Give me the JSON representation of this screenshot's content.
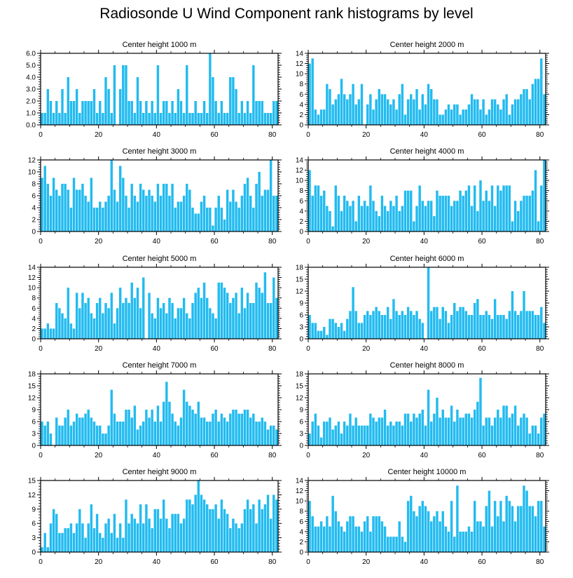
{
  "title": "Radiosonde U Wind Component rank histograms by level",
  "bar_color": "#22bbf0",
  "chart_data": [
    {
      "type": "bar",
      "title": "Center height 1000 m",
      "xlabel": "",
      "ylabel": "",
      "xlim": [
        0,
        82
      ],
      "ylim": [
        0,
        6
      ],
      "yticks": [
        0,
        1,
        2,
        3,
        4,
        5,
        6
      ],
      "ytick_labels": [
        "0.0",
        "1.0",
        "2.0",
        "3.0",
        "4.0",
        "5.0",
        "6.0"
      ],
      "xticks": [
        0,
        20,
        40,
        60,
        80
      ],
      "values": [
        1,
        1,
        3,
        2,
        1,
        2,
        1,
        3,
        1,
        4,
        2,
        2,
        3,
        1,
        2,
        2,
        2,
        2,
        3,
        1,
        2,
        1,
        4,
        3,
        1,
        5,
        0,
        3,
        5,
        5,
        2,
        2,
        1,
        4,
        2,
        1,
        2,
        1,
        2,
        1,
        5,
        1,
        2,
        2,
        1,
        2,
        1,
        3,
        2,
        1,
        5,
        1,
        1,
        2,
        1,
        1,
        2,
        1,
        6,
        4,
        2,
        1,
        2,
        1,
        1,
        4,
        4,
        3,
        1,
        2,
        1,
        2,
        1,
        5,
        2,
        2,
        2,
        1,
        1,
        1,
        2,
        2
      ]
    },
    {
      "type": "bar",
      "title": "Center height 2000 m",
      "xlabel": "",
      "ylabel": "",
      "xlim": [
        0,
        82
      ],
      "ylim": [
        0,
        14
      ],
      "yticks": [
        0,
        2,
        4,
        6,
        8,
        10,
        12,
        14
      ],
      "ytick_labels": [
        "0",
        "2",
        "4",
        "6",
        "8",
        "10",
        "12",
        "14"
      ],
      "xticks": [
        0,
        20,
        40,
        60,
        80
      ],
      "values": [
        12,
        13,
        3,
        2,
        3,
        3,
        8,
        7,
        4,
        5,
        6,
        9,
        6,
        5,
        6,
        8,
        4,
        5,
        8,
        0,
        4,
        6,
        3,
        5,
        7,
        6,
        6,
        5,
        4,
        5,
        3,
        6,
        8,
        2,
        5,
        6,
        5,
        7,
        3,
        6,
        4,
        8,
        7,
        5,
        5,
        2,
        2,
        3,
        4,
        3,
        4,
        4,
        2,
        3,
        3,
        4,
        6,
        5,
        5,
        3,
        5,
        2,
        3,
        5,
        5,
        4,
        3,
        5,
        6,
        2,
        4,
        5,
        5,
        6,
        7,
        7,
        5,
        8,
        9,
        9,
        13,
        6
      ]
    },
    {
      "type": "bar",
      "title": "Center height 3000 m",
      "xlabel": "",
      "ylabel": "",
      "xlim": [
        0,
        82
      ],
      "ylim": [
        0,
        12
      ],
      "yticks": [
        0,
        2,
        4,
        6,
        8,
        10,
        12
      ],
      "ytick_labels": [
        "0",
        "2",
        "4",
        "6",
        "8",
        "10",
        "12"
      ],
      "xticks": [
        0,
        20,
        40,
        60,
        80
      ],
      "values": [
        9,
        11,
        8,
        6,
        9,
        7,
        6,
        8,
        8,
        7,
        4,
        9,
        7,
        7,
        8,
        6,
        5,
        9,
        4,
        4,
        5,
        4,
        5,
        6,
        12,
        7,
        5,
        11,
        9,
        6,
        4,
        8,
        6,
        5,
        8,
        7,
        6,
        7,
        6,
        5,
        8,
        6,
        8,
        8,
        6,
        8,
        4,
        5,
        5,
        6,
        8,
        7,
        4,
        3,
        3,
        5,
        6,
        4,
        4,
        1,
        4,
        6,
        4,
        2,
        7,
        5,
        7,
        5,
        4,
        6,
        8,
        9,
        6,
        4,
        8,
        10,
        6,
        7,
        7,
        12,
        6,
        6
      ]
    },
    {
      "type": "bar",
      "title": "Center height 4000 m",
      "xlabel": "",
      "ylabel": "",
      "xlim": [
        0,
        82
      ],
      "ylim": [
        0,
        14
      ],
      "yticks": [
        0,
        2,
        4,
        6,
        8,
        10,
        12,
        14
      ],
      "ytick_labels": [
        "0",
        "2",
        "4",
        "6",
        "8",
        "10",
        "12",
        "14"
      ],
      "xticks": [
        0,
        20,
        40,
        60,
        80
      ],
      "values": [
        12,
        7,
        9,
        9,
        7,
        8,
        5,
        4,
        1,
        9,
        7,
        4,
        7,
        6,
        5,
        6,
        2,
        7,
        5,
        6,
        5,
        9,
        6,
        4,
        3,
        7,
        5,
        4,
        6,
        5,
        7,
        4,
        5,
        8,
        8,
        8,
        2,
        5,
        9,
        6,
        5,
        6,
        6,
        3,
        8,
        7,
        7,
        7,
        7,
        5,
        6,
        6,
        8,
        7,
        8,
        9,
        5,
        9,
        4,
        10,
        6,
        8,
        6,
        9,
        5,
        9,
        8,
        9,
        9,
        9,
        2,
        6,
        4,
        6,
        7,
        7,
        7,
        8,
        12,
        2,
        9,
        14
      ]
    },
    {
      "type": "bar",
      "title": "Center height 5000 m",
      "xlabel": "",
      "ylabel": "",
      "xlim": [
        0,
        82
      ],
      "ylim": [
        0,
        14
      ],
      "yticks": [
        0,
        2,
        4,
        6,
        8,
        10,
        12,
        14
      ],
      "ytick_labels": [
        "0",
        "2",
        "4",
        "6",
        "8",
        "10",
        "12",
        "14"
      ],
      "xticks": [
        0,
        20,
        40,
        60,
        80
      ],
      "values": [
        2,
        2,
        3,
        2,
        2,
        7,
        6,
        5,
        4,
        10,
        3,
        2,
        9,
        6,
        9,
        7,
        8,
        5,
        4,
        7,
        8,
        5,
        7,
        6,
        9,
        3,
        6,
        10,
        7,
        8,
        7,
        11,
        8,
        10,
        6,
        12,
        0,
        9,
        5,
        4,
        8,
        6,
        7,
        5,
        8,
        7,
        4,
        6,
        6,
        8,
        5,
        4,
        7,
        9,
        10,
        8,
        11,
        8,
        6,
        5,
        4,
        11,
        11,
        10,
        9,
        7,
        8,
        9,
        5,
        10,
        6,
        9,
        7,
        7,
        11,
        10,
        9,
        13,
        7,
        7,
        12,
        8
      ]
    },
    {
      "type": "bar",
      "title": "Center height 6000 m",
      "xlabel": "",
      "ylabel": "",
      "xlim": [
        0,
        82
      ],
      "ylim": [
        0,
        18
      ],
      "yticks": [
        0,
        3,
        6,
        9,
        12,
        15,
        18
      ],
      "ytick_labels": [
        "0",
        "3",
        "6",
        "9",
        "12",
        "15",
        "18"
      ],
      "xticks": [
        0,
        20,
        40,
        60,
        80
      ],
      "values": [
        6,
        4,
        4,
        2,
        2,
        3,
        1,
        5,
        5,
        4,
        3,
        4,
        2,
        5,
        7,
        13,
        7,
        4,
        4,
        6,
        7,
        6,
        7,
        8,
        7,
        6,
        6,
        8,
        5,
        10,
        7,
        6,
        7,
        6,
        8,
        7,
        6,
        7,
        5,
        4,
        0,
        18,
        7,
        8,
        8,
        5,
        8,
        7,
        4,
        6,
        9,
        7,
        8,
        8,
        7,
        6,
        6,
        9,
        10,
        6,
        6,
        7,
        6,
        5,
        10,
        6,
        6,
        6,
        5,
        7,
        12,
        7,
        6,
        7,
        12,
        7,
        7,
        7,
        6,
        6,
        8,
        4
      ]
    },
    {
      "type": "bar",
      "title": "Center height 7000 m",
      "xlabel": "",
      "ylabel": "",
      "xlim": [
        0,
        82
      ],
      "ylim": [
        0,
        18
      ],
      "yticks": [
        0,
        3,
        6,
        9,
        12,
        15,
        18
      ],
      "ytick_labels": [
        "0",
        "3",
        "6",
        "9",
        "12",
        "15",
        "18"
      ],
      "xticks": [
        0,
        20,
        40,
        60,
        80
      ],
      "values": [
        6,
        5,
        6,
        3,
        0,
        7,
        5,
        5,
        7,
        9,
        5,
        6,
        8,
        7,
        7,
        8,
        9,
        7,
        6,
        5,
        5,
        3,
        3,
        5,
        14,
        8,
        6,
        6,
        6,
        9,
        9,
        7,
        10,
        4,
        5,
        6,
        9,
        7,
        9,
        6,
        10,
        6,
        11,
        16,
        11,
        8,
        6,
        5,
        7,
        14,
        11,
        10,
        9,
        8,
        11,
        7,
        7,
        6,
        6,
        8,
        9,
        6,
        8,
        7,
        6,
        8,
        9,
        9,
        8,
        8,
        9,
        9,
        7,
        8,
        6,
        6,
        7,
        6,
        4,
        5,
        5,
        4
      ]
    },
    {
      "type": "bar",
      "title": "Center height 8000 m",
      "xlabel": "",
      "ylabel": "",
      "xlim": [
        0,
        82
      ],
      "ylim": [
        0,
        18
      ],
      "yticks": [
        0,
        3,
        6,
        9,
        12,
        15,
        18
      ],
      "ytick_labels": [
        "0",
        "3",
        "6",
        "9",
        "12",
        "15",
        "18"
      ],
      "xticks": [
        0,
        20,
        40,
        60,
        80
      ],
      "values": [
        3,
        6,
        8,
        5,
        2,
        6,
        6,
        7,
        4,
        5,
        6,
        3,
        6,
        5,
        8,
        5,
        7,
        5,
        5,
        5,
        5,
        8,
        7,
        6,
        7,
        7,
        9,
        5,
        6,
        5,
        6,
        6,
        5,
        8,
        8,
        6,
        8,
        7,
        8,
        9,
        5,
        14,
        6,
        8,
        12,
        7,
        9,
        7,
        7,
        10,
        6,
        9,
        7,
        7,
        8,
        8,
        7,
        9,
        11,
        17,
        5,
        7,
        7,
        5,
        7,
        9,
        7,
        10,
        10,
        7,
        8,
        10,
        5,
        7,
        8,
        7,
        3,
        5,
        5,
        3,
        7,
        8
      ]
    },
    {
      "type": "bar",
      "title": "Center height 9000 m",
      "xlabel": "",
      "ylabel": "",
      "xlim": [
        0,
        82
      ],
      "ylim": [
        0,
        15
      ],
      "yticks": [
        0,
        3,
        6,
        9,
        12,
        15
      ],
      "ytick_labels": [
        "0",
        "3",
        "6",
        "9",
        "12",
        "15"
      ],
      "xticks": [
        0,
        20,
        40,
        60,
        80
      ],
      "values": [
        1,
        4,
        1,
        6,
        9,
        8,
        4,
        4,
        5,
        5,
        6,
        4,
        6,
        9,
        6,
        3,
        6,
        10,
        5,
        8,
        4,
        3,
        6,
        7,
        4,
        8,
        3,
        6,
        3,
        11,
        6,
        8,
        7,
        6,
        10,
        6,
        10,
        7,
        5,
        9,
        9,
        7,
        11,
        7,
        5,
        8,
        8,
        8,
        6,
        7,
        11,
        11,
        10,
        12,
        15,
        12,
        11,
        10,
        9,
        9,
        10,
        7,
        11,
        9,
        8,
        5,
        7,
        6,
        5,
        6,
        9,
        11,
        9,
        10,
        6,
        11,
        9,
        10,
        12,
        7,
        12,
        11
      ]
    },
    {
      "type": "bar",
      "title": "Center height 10000 m",
      "xlabel": "",
      "ylabel": "",
      "xlim": [
        0,
        82
      ],
      "ylim": [
        0,
        14
      ],
      "yticks": [
        0,
        2,
        4,
        6,
        8,
        10,
        12,
        14
      ],
      "ytick_labels": [
        "0",
        "2",
        "4",
        "6",
        "8",
        "10",
        "12",
        "14"
      ],
      "xticks": [
        0,
        20,
        40,
        60,
        80
      ],
      "values": [
        10,
        7,
        5,
        5,
        6,
        5,
        7,
        5,
        11,
        8,
        6,
        5,
        4,
        6,
        7,
        7,
        5,
        5,
        4,
        6,
        7,
        4,
        7,
        7,
        7,
        6,
        5,
        3,
        3,
        3,
        3,
        6,
        3,
        2,
        10,
        11,
        8,
        7,
        9,
        10,
        9,
        8,
        6,
        7,
        8,
        6,
        8,
        5,
        4,
        10,
        3,
        13,
        4,
        4,
        4,
        5,
        4,
        10,
        6,
        6,
        5,
        9,
        12,
        5,
        10,
        7,
        10,
        6,
        11,
        10,
        9,
        6,
        9,
        9,
        13,
        12,
        9,
        9,
        7,
        10,
        10,
        5
      ]
    }
  ]
}
